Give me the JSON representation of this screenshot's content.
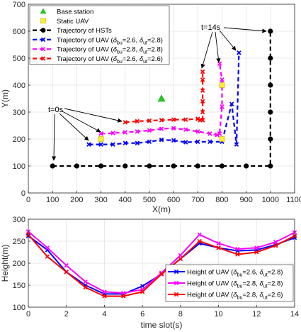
{
  "chart_data": [
    {
      "type": "scatter",
      "xlabel": "X(m)",
      "ylabel": "Y(m)",
      "xlim": [
        0,
        1100
      ],
      "ylim": [
        0,
        700
      ],
      "xticks": [
        "0",
        "100",
        "200",
        "300",
        "400",
        "500",
        "600",
        "700",
        "800",
        "900",
        "1000",
        "1100"
      ],
      "yticks": [
        "0",
        "100",
        "200",
        "300",
        "400",
        "500",
        "600",
        "700"
      ],
      "grid": true,
      "legend_position": "top-left",
      "legend": [
        {
          "key": "bs",
          "label": "Base station"
        },
        {
          "key": "static",
          "label": "Static UAV"
        },
        {
          "key": "hst",
          "label": "Trajectory of HSTs"
        },
        {
          "key": "u1",
          "label_pre": "Trajectory of UAV (",
          "v1": "bu",
          "v1val": "=2.6, ",
          "v2": "ut",
          "v2val": "=2.8)"
        },
        {
          "key": "u2",
          "label_pre": "Trajectory of UAV (",
          "v1": "bu",
          "v1val": "=2.8, ",
          "v2": "ut",
          "v2val": "=2.8)"
        },
        {
          "key": "u3",
          "label_pre": "Trajectory of UAV (",
          "v1": "bu",
          "v1val": "=2.6, ",
          "v2": "ut",
          "v2val": "=2.6)"
        }
      ],
      "base_station": {
        "x": 550,
        "y": 350,
        "color": "#22cc22"
      },
      "static_uav": {
        "points": [
          [
            300,
            200
          ],
          [
            800,
            400
          ],
          [
            800,
            200
          ]
        ],
        "color": "#ffee33"
      },
      "series": [
        {
          "key": "hst",
          "color": "#000000",
          "x": [
            100,
            200,
            300,
            400,
            500,
            600,
            700,
            800,
            900,
            1000,
            1000,
            1000,
            1000,
            1000,
            1000
          ],
          "y": [
            100,
            100,
            100,
            100,
            100,
            100,
            100,
            100,
            100,
            100,
            200,
            300,
            400,
            500,
            600
          ]
        },
        {
          "key": "u1",
          "color": "#0000ff",
          "x": [
            250,
            300,
            350,
            400,
            450,
            500,
            550,
            600,
            650,
            700,
            750,
            800,
            840,
            860,
            870
          ],
          "y": [
            180,
            180,
            180,
            185,
            185,
            190,
            197,
            195,
            188,
            190,
            190,
            190,
            330,
            180,
            520
          ]
        },
        {
          "key": "u2",
          "color": "#ff00ff",
          "x": [
            300,
            350,
            400,
            450,
            500,
            550,
            600,
            650,
            700,
            750,
            780,
            790,
            800,
            800,
            790
          ],
          "y": [
            220,
            222,
            225,
            228,
            232,
            238,
            240,
            235,
            228,
            220,
            215,
            220,
            320,
            420,
            480
          ]
        },
        {
          "key": "u3",
          "color": "#ff0000",
          "x": [
            400,
            450,
            500,
            550,
            600,
            650,
            700,
            710,
            720,
            720,
            720,
            720,
            720,
            720,
            720
          ],
          "y": [
            262,
            266,
            268,
            270,
            272,
            272,
            275,
            270,
            270,
            270,
            300,
            340,
            380,
            420,
            450
          ]
        }
      ],
      "annotations": [
        {
          "text": "t=0s"
        },
        {
          "text": "t=14s"
        }
      ]
    },
    {
      "type": "line",
      "xlabel": "time slot(s)",
      "ylabel": "Height(m)",
      "xlim": [
        0,
        14
      ],
      "ylim": [
        100,
        300
      ],
      "xticks": [
        "0",
        "2",
        "4",
        "6",
        "8",
        "10",
        "12",
        "14"
      ],
      "yticks": [
        "100",
        "150",
        "200",
        "250",
        "300"
      ],
      "grid": true,
      "legend_position": "right",
      "legend": [
        {
          "key": "h1",
          "label_pre": "Height of UAV (",
          "v1": "bu",
          "v1val": "=2.6, ",
          "v2": "ut",
          "v2val": "=2.8)"
        },
        {
          "key": "h2",
          "label_pre": "Height of UAV (",
          "v1": "bu",
          "v1val": "=2.8, ",
          "v2": "ut",
          "v2val": "=2.8)"
        },
        {
          "key": "h3",
          "label_pre": "Height of UAV (",
          "v1": "bu",
          "v1val": "=2.8, ",
          "v2": "ut",
          "v2val": "=2.6)"
        }
      ],
      "x": [
        0,
        1,
        2,
        3,
        4,
        5,
        6,
        7,
        8,
        9,
        10,
        11,
        12,
        13,
        14
      ],
      "series": [
        {
          "key": "h1",
          "color": "#0000ff",
          "values": [
            262,
            230,
            180,
            150,
            130,
            130,
            148,
            175,
            210,
            245,
            235,
            228,
            230,
            242,
            258
          ]
        },
        {
          "key": "h2",
          "color": "#ff00ff",
          "values": [
            272,
            235,
            195,
            158,
            135,
            132,
            140,
            178,
            218,
            265,
            245,
            232,
            235,
            248,
            270
          ]
        },
        {
          "key": "h3",
          "color": "#ff0000",
          "values": [
            265,
            215,
            180,
            145,
            125,
            125,
            135,
            175,
            210,
            250,
            235,
            220,
            225,
            240,
            262
          ]
        }
      ]
    }
  ]
}
